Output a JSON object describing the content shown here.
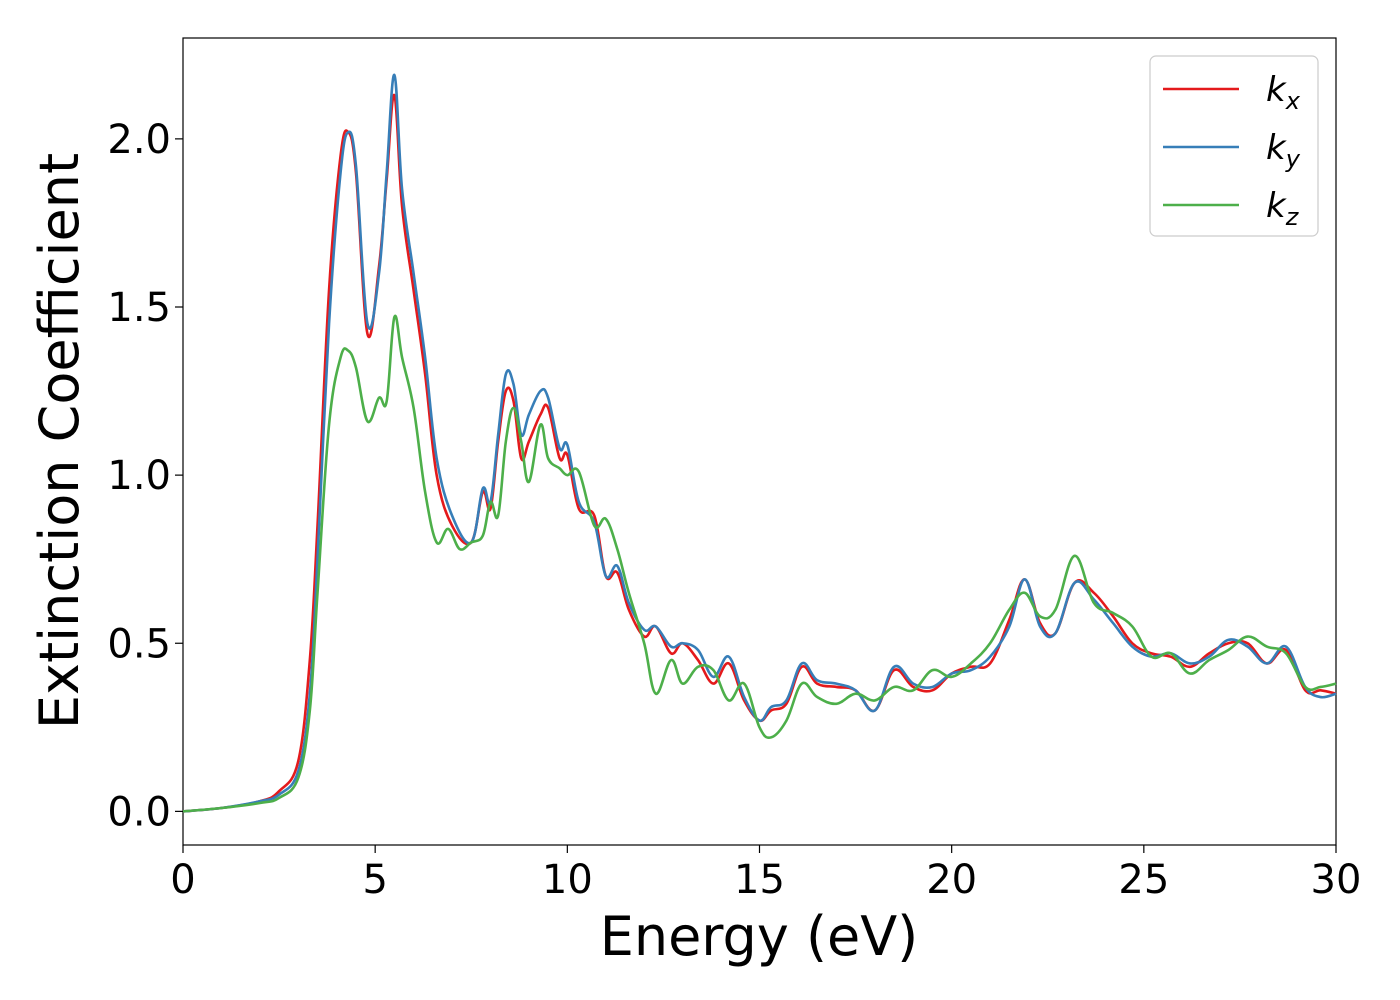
{
  "chart_data": {
    "type": "line",
    "title": "",
    "xlabel": "Energy (eV)",
    "ylabel": "Extinction Coefficient",
    "xlim": [
      0,
      30
    ],
    "ylim": [
      -0.1,
      2.3
    ],
    "xticks": [
      0,
      5,
      10,
      15,
      20,
      25,
      30
    ],
    "xtick_labels": [
      "0",
      "5",
      "10",
      "15",
      "20",
      "25",
      "30"
    ],
    "yticks": [
      0.0,
      0.5,
      1.0,
      1.5,
      2.0
    ],
    "ytick_labels": [
      "0.0",
      "0.5",
      "1.0",
      "1.5",
      "2.0"
    ],
    "grid": false,
    "legend_position": "top-right",
    "series": [
      {
        "name": "k_x",
        "label_main": "k",
        "label_sub": "x",
        "color": "#e41a1c",
        "x": [
          0,
          1,
          2,
          2.5,
          3,
          3.3,
          3.5,
          3.8,
          4.1,
          4.3,
          4.5,
          4.8,
          5.1,
          5.3,
          5.5,
          5.7,
          6.0,
          6.3,
          6.6,
          7.0,
          7.5,
          7.8,
          8.0,
          8.2,
          8.4,
          8.6,
          8.8,
          9.0,
          9.3,
          9.5,
          9.8,
          10.0,
          10.3,
          10.7,
          11.0,
          11.3,
          11.6,
          12.0,
          12.3,
          12.7,
          13.0,
          13.4,
          13.8,
          14.2,
          14.6,
          15.0,
          15.3,
          15.7,
          16.1,
          16.5,
          17.0,
          17.5,
          18.0,
          18.5,
          19.0,
          19.5,
          20.0,
          20.5,
          21.0,
          21.5,
          21.9,
          22.3,
          22.7,
          23.2,
          23.7,
          24.2,
          24.7,
          25.2,
          25.7,
          26.2,
          26.7,
          27.2,
          27.7,
          28.2,
          28.7,
          29.2,
          29.6,
          30
        ],
        "y": [
          0,
          0.01,
          0.03,
          0.06,
          0.15,
          0.45,
          0.85,
          1.55,
          1.95,
          2.02,
          1.9,
          1.42,
          1.62,
          1.88,
          2.13,
          1.8,
          1.55,
          1.3,
          1.0,
          0.85,
          0.8,
          0.95,
          0.9,
          1.1,
          1.25,
          1.22,
          1.05,
          1.1,
          1.18,
          1.2,
          1.05,
          1.06,
          0.9,
          0.88,
          0.7,
          0.71,
          0.6,
          0.52,
          0.55,
          0.47,
          0.5,
          0.45,
          0.38,
          0.44,
          0.33,
          0.27,
          0.3,
          0.32,
          0.43,
          0.38,
          0.37,
          0.36,
          0.3,
          0.42,
          0.37,
          0.36,
          0.41,
          0.43,
          0.44,
          0.57,
          0.69,
          0.56,
          0.53,
          0.68,
          0.65,
          0.58,
          0.5,
          0.47,
          0.46,
          0.43,
          0.47,
          0.5,
          0.5,
          0.44,
          0.48,
          0.36,
          0.36,
          0.35
        ]
      },
      {
        "name": "k_y",
        "label_main": "k",
        "label_sub": "y",
        "color": "#377eb8",
        "x": [
          0,
          1,
          2,
          2.5,
          3,
          3.3,
          3.5,
          3.8,
          4.1,
          4.3,
          4.5,
          4.8,
          5.1,
          5.3,
          5.5,
          5.7,
          6.0,
          6.3,
          6.6,
          7.0,
          7.5,
          7.8,
          8.0,
          8.2,
          8.4,
          8.6,
          8.8,
          9.0,
          9.3,
          9.5,
          9.8,
          10.0,
          10.3,
          10.7,
          11.0,
          11.3,
          11.6,
          12.0,
          12.3,
          12.7,
          13.0,
          13.4,
          13.8,
          14.2,
          14.6,
          15.0,
          15.3,
          15.7,
          16.1,
          16.5,
          17.0,
          17.5,
          18.0,
          18.5,
          19.0,
          19.5,
          20.0,
          20.5,
          21.0,
          21.5,
          21.9,
          22.3,
          22.7,
          23.2,
          23.7,
          24.2,
          24.7,
          25.2,
          25.7,
          26.2,
          26.7,
          27.2,
          27.7,
          28.2,
          28.7,
          29.2,
          29.6,
          30
        ],
        "y": [
          0,
          0.01,
          0.03,
          0.05,
          0.12,
          0.35,
          0.75,
          1.45,
          1.9,
          2.02,
          1.92,
          1.45,
          1.6,
          1.9,
          2.19,
          1.85,
          1.6,
          1.35,
          1.05,
          0.88,
          0.8,
          0.96,
          0.92,
          1.12,
          1.3,
          1.27,
          1.12,
          1.18,
          1.25,
          1.23,
          1.08,
          1.09,
          0.92,
          0.86,
          0.7,
          0.73,
          0.62,
          0.54,
          0.55,
          0.49,
          0.5,
          0.48,
          0.4,
          0.46,
          0.34,
          0.27,
          0.31,
          0.33,
          0.44,
          0.39,
          0.38,
          0.36,
          0.3,
          0.43,
          0.38,
          0.37,
          0.41,
          0.42,
          0.46,
          0.55,
          0.69,
          0.55,
          0.53,
          0.68,
          0.63,
          0.56,
          0.49,
          0.46,
          0.47,
          0.44,
          0.46,
          0.51,
          0.49,
          0.44,
          0.49,
          0.37,
          0.34,
          0.35
        ]
      },
      {
        "name": "k_z",
        "label_main": "k",
        "label_sub": "z",
        "color": "#4daf4a",
        "x": [
          0,
          1,
          2,
          2.5,
          3,
          3.3,
          3.5,
          3.8,
          4.1,
          4.3,
          4.5,
          4.8,
          5.1,
          5.3,
          5.5,
          5.7,
          6.0,
          6.3,
          6.6,
          6.9,
          7.2,
          7.5,
          7.8,
          8.0,
          8.2,
          8.4,
          8.6,
          8.8,
          9.0,
          9.3,
          9.5,
          9.8,
          10.0,
          10.3,
          10.7,
          11.0,
          11.3,
          11.6,
          12.0,
          12.3,
          12.7,
          13.0,
          13.4,
          13.8,
          14.2,
          14.6,
          15.0,
          15.3,
          15.7,
          16.1,
          16.5,
          17.0,
          17.5,
          18.0,
          18.5,
          19.0,
          19.5,
          20.0,
          20.5,
          21.0,
          21.5,
          21.9,
          22.3,
          22.7,
          23.2,
          23.7,
          24.2,
          24.7,
          25.2,
          25.7,
          26.2,
          26.7,
          27.2,
          27.7,
          28.2,
          28.7,
          29.2,
          29.6,
          30
        ],
        "y": [
          0,
          0.01,
          0.025,
          0.04,
          0.1,
          0.3,
          0.65,
          1.15,
          1.35,
          1.37,
          1.32,
          1.16,
          1.23,
          1.22,
          1.47,
          1.35,
          1.2,
          0.95,
          0.8,
          0.84,
          0.78,
          0.8,
          0.82,
          0.92,
          0.88,
          1.1,
          1.2,
          1.1,
          0.98,
          1.15,
          1.05,
          1.02,
          1.0,
          1.01,
          0.85,
          0.87,
          0.78,
          0.65,
          0.5,
          0.35,
          0.45,
          0.38,
          0.43,
          0.42,
          0.33,
          0.38,
          0.25,
          0.22,
          0.27,
          0.38,
          0.34,
          0.32,
          0.35,
          0.33,
          0.37,
          0.36,
          0.42,
          0.4,
          0.44,
          0.5,
          0.6,
          0.65,
          0.58,
          0.6,
          0.76,
          0.62,
          0.59,
          0.55,
          0.46,
          0.47,
          0.41,
          0.45,
          0.48,
          0.52,
          0.49,
          0.47,
          0.37,
          0.37,
          0.38
        ]
      }
    ]
  }
}
